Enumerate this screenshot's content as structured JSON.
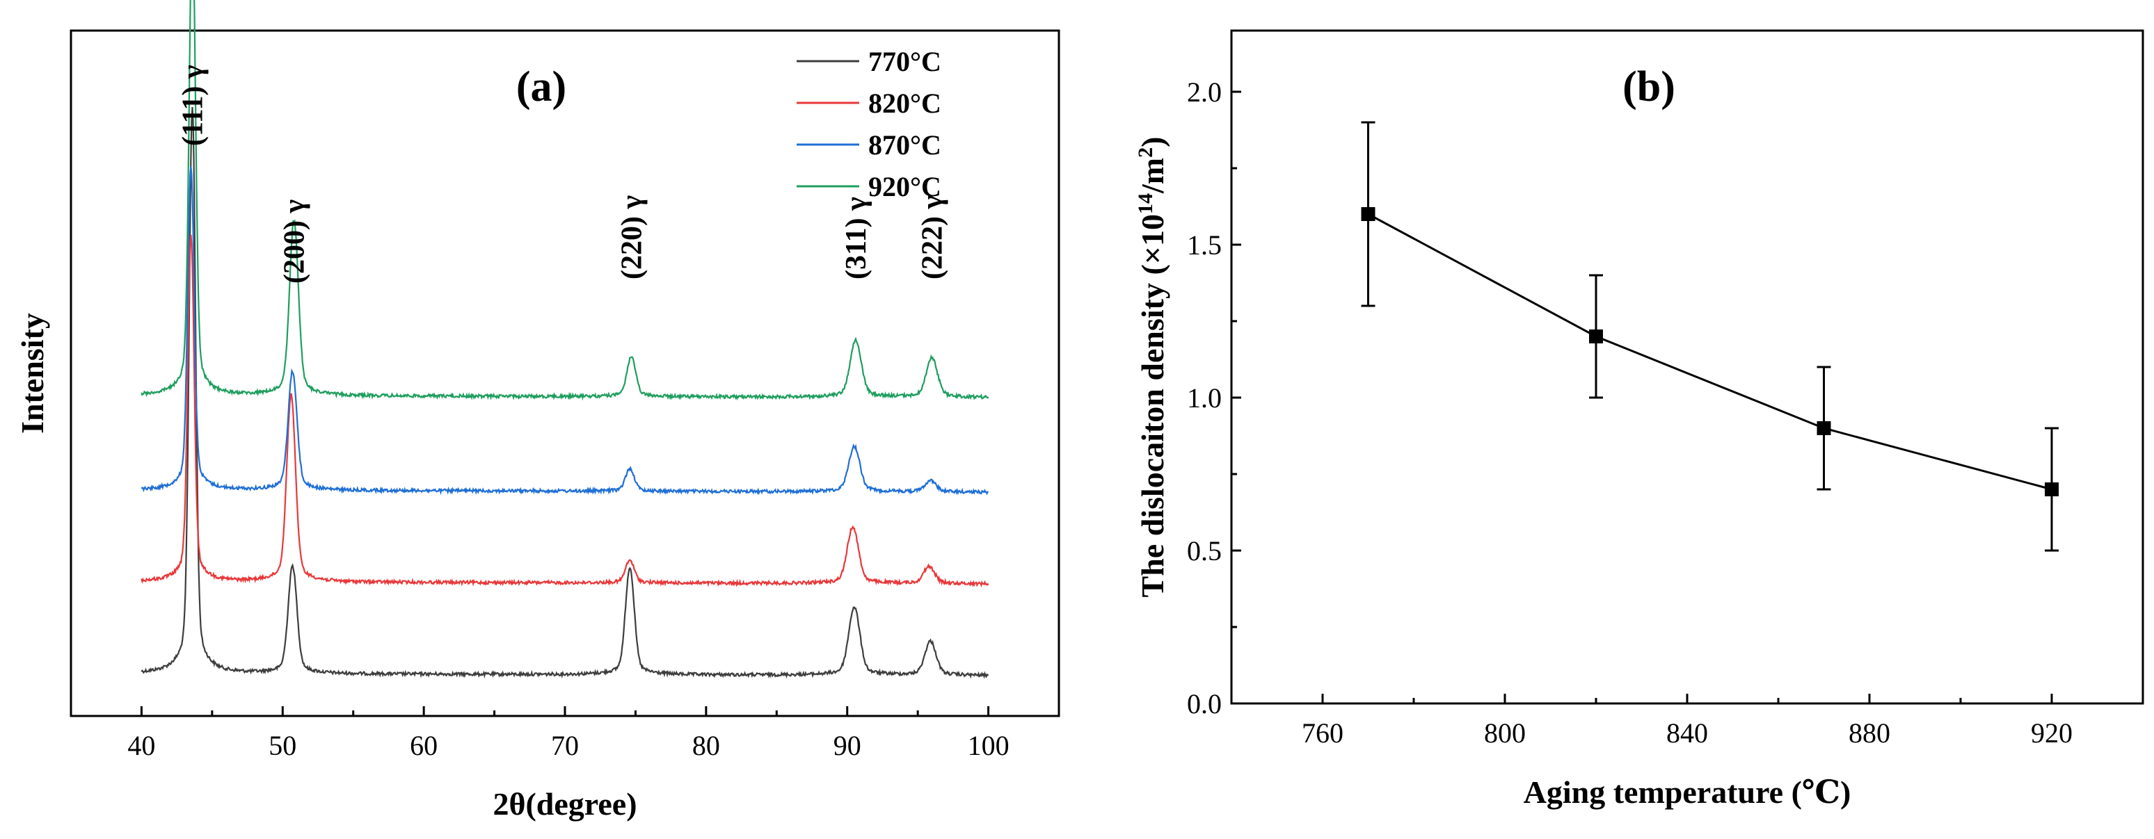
{
  "chart_data": [
    {
      "type": "line",
      "panel_label": "(a)",
      "title": "",
      "xlabel": "2θ(degree)",
      "ylabel": "Intensity",
      "xlim": [
        35,
        105
      ],
      "xticks": [
        40,
        50,
        60,
        70,
        80,
        90,
        100
      ],
      "xtick_labels": [
        "40",
        "50",
        "60",
        "70",
        "80",
        "90",
        "100"
      ],
      "grid": false,
      "legend_position": "top-right",
      "series": [
        {
          "name": "770°C",
          "color": "#3d3d3d",
          "baseline": 0.0,
          "peaks": [
            {
              "x": 43.6,
              "h": 1.0
            },
            {
              "x": 50.7,
              "h": 0.19
            },
            {
              "x": 74.6,
              "h": 0.19
            },
            {
              "x": 90.5,
              "h": 0.12
            },
            {
              "x": 95.9,
              "h": 0.06
            }
          ]
        },
        {
          "name": "820°C",
          "color": "#e8383a",
          "baseline": 0.33,
          "peaks": [
            {
              "x": 43.5,
              "h": 0.61
            },
            {
              "x": 50.6,
              "h": 0.33
            },
            {
              "x": 74.6,
              "h": 0.04
            },
            {
              "x": 90.4,
              "h": 0.1
            },
            {
              "x": 95.8,
              "h": 0.03
            }
          ]
        },
        {
          "name": "870°C",
          "color": "#1f6fd6",
          "baseline": 0.66,
          "peaks": [
            {
              "x": 43.5,
              "h": 0.57
            },
            {
              "x": 50.7,
              "h": 0.21
            },
            {
              "x": 74.6,
              "h": 0.04
            },
            {
              "x": 90.5,
              "h": 0.08
            },
            {
              "x": 95.9,
              "h": 0.02
            }
          ]
        },
        {
          "name": "920°C",
          "color": "#1f9e5e",
          "baseline": 1.0,
          "peaks": [
            {
              "x": 43.6,
              "h": 0.83
            },
            {
              "x": 50.8,
              "h": 0.31
            },
            {
              "x": 74.7,
              "h": 0.07
            },
            {
              "x": 90.6,
              "h": 0.1
            },
            {
              "x": 96.0,
              "h": 0.07
            }
          ]
        }
      ],
      "annotations": [
        {
          "text": "(111) γ",
          "x": 43.6
        },
        {
          "text": "(200) γ",
          "x": 50.8
        },
        {
          "text": "(220) γ",
          "x": 74.7
        },
        {
          "text": "(311) γ",
          "x": 90.6
        },
        {
          "text": "(222) γ",
          "x": 96.0
        }
      ]
    },
    {
      "type": "line",
      "panel_label": "(b)",
      "title": "",
      "xlabel": "Aging temperature (℃)",
      "ylabel_main": "The dislocaiton density (×10",
      "ylabel_exp1": "14",
      "ylabel_mid": "/m",
      "ylabel_exp2": "2",
      "ylabel_end": ")",
      "xlim": [
        740,
        940
      ],
      "ylim": [
        0.0,
        2.2
      ],
      "xticks": [
        760,
        800,
        840,
        880,
        920
      ],
      "xtick_labels": [
        "760",
        "800",
        "840",
        "880",
        "920"
      ],
      "yticks": [
        0.0,
        0.5,
        1.0,
        1.5,
        2.0
      ],
      "ytick_labels": [
        "0.0",
        "0.5",
        "1.0",
        "1.5",
        "2.0"
      ],
      "grid": false,
      "series": [
        {
          "name": "dislocation density",
          "color": "#000000",
          "x": [
            770,
            820,
            870,
            920
          ],
          "y": [
            1.6,
            1.2,
            0.9,
            0.7
          ],
          "error": [
            0.3,
            0.2,
            0.2,
            0.2
          ]
        }
      ]
    }
  ]
}
